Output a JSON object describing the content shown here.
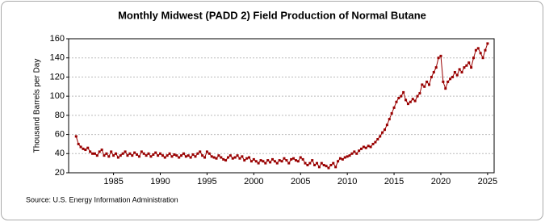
{
  "chart_data": {
    "type": "line",
    "title": "Monthly Midwest (PADD 2) Field Production of Normal Butane",
    "y_label": "Thousand Barrels per Day",
    "source": "Source: U.S. Energy Information Administration",
    "xlim": [
      1980.2,
      2025.7
    ],
    "xticks": [
      1985,
      1990,
      1995,
      2000,
      2005,
      2010,
      2015,
      2020,
      2025
    ],
    "ylim": [
      20,
      160
    ],
    "yticks": [
      20,
      40,
      60,
      80,
      100,
      120,
      140,
      160
    ],
    "grid": true,
    "x": [
      1981,
      1981.25,
      1981.5,
      1981.75,
      1982,
      1982.25,
      1982.5,
      1982.75,
      1983,
      1983.25,
      1983.5,
      1983.75,
      1984,
      1984.25,
      1984.5,
      1984.75,
      1985,
      1985.25,
      1985.5,
      1985.75,
      1986,
      1986.25,
      1986.5,
      1986.75,
      1987,
      1987.25,
      1987.5,
      1987.75,
      1988,
      1988.25,
      1988.5,
      1988.75,
      1989,
      1989.25,
      1989.5,
      1989.75,
      1990,
      1990.25,
      1990.5,
      1990.75,
      1991,
      1991.25,
      1991.5,
      1991.75,
      1992,
      1992.25,
      1992.5,
      1992.75,
      1993,
      1993.25,
      1993.5,
      1993.75,
      1994,
      1994.25,
      1994.5,
      1994.75,
      1995,
      1995.25,
      1995.5,
      1995.75,
      1996,
      1996.25,
      1996.5,
      1996.75,
      1997,
      1997.25,
      1997.5,
      1997.75,
      1998,
      1998.25,
      1998.5,
      1998.75,
      1999,
      1999.25,
      1999.5,
      1999.75,
      2000,
      2000.25,
      2000.5,
      2000.75,
      2001,
      2001.25,
      2001.5,
      2001.75,
      2002,
      2002.25,
      2002.5,
      2002.75,
      2003,
      2003.25,
      2003.5,
      2003.75,
      2004,
      2004.25,
      2004.5,
      2004.75,
      2005,
      2005.25,
      2005.5,
      2005.75,
      2006,
      2006.25,
      2006.5,
      2006.75,
      2007,
      2007.25,
      2007.5,
      2007.75,
      2008,
      2008.25,
      2008.5,
      2008.75,
      2009,
      2009.25,
      2009.5,
      2009.75,
      2010,
      2010.25,
      2010.5,
      2010.75,
      2011,
      2011.25,
      2011.5,
      2011.75,
      2012,
      2012.25,
      2012.5,
      2012.75,
      2013,
      2013.25,
      2013.5,
      2013.75,
      2014,
      2014.25,
      2014.5,
      2014.75,
      2015,
      2015.25,
      2015.5,
      2015.75,
      2016,
      2016.25,
      2016.5,
      2016.75,
      2017,
      2017.25,
      2017.5,
      2017.75,
      2018,
      2018.25,
      2018.5,
      2018.75,
      2019,
      2019.25,
      2019.5,
      2019.75,
      2020,
      2020.25,
      2020.5,
      2020.75,
      2021,
      2021.25,
      2021.5,
      2021.75,
      2022,
      2022.25,
      2022.5,
      2022.75,
      2023,
      2023.25,
      2023.5,
      2023.75,
      2024,
      2024.25,
      2024.5,
      2024.75,
      2025
    ],
    "series": [
      {
        "color": "#990000",
        "values": [
          58,
          50,
          47,
          45,
          44,
          46,
          42,
          40,
          40,
          38,
          42,
          44,
          38,
          40,
          37,
          42,
          38,
          40,
          36,
          38,
          40,
          42,
          38,
          40,
          38,
          41,
          39,
          37,
          42,
          40,
          38,
          40,
          37,
          39,
          41,
          38,
          40,
          38,
          36,
          38,
          40,
          37,
          39,
          38,
          36,
          38,
          40,
          37,
          38,
          36,
          39,
          37,
          40,
          42,
          38,
          36,
          42,
          40,
          37,
          36,
          35,
          38,
          36,
          34,
          33,
          36,
          38,
          35,
          36,
          38,
          35,
          37,
          33,
          35,
          36,
          32,
          34,
          32,
          30,
          33,
          32,
          30,
          33,
          31,
          34,
          32,
          30,
          33,
          32,
          35,
          33,
          30,
          34,
          35,
          33,
          32,
          36,
          34,
          30,
          28,
          30,
          33,
          28,
          30,
          26,
          30,
          28,
          27,
          25,
          28,
          30,
          26,
          32,
          35,
          34,
          36,
          37,
          38,
          40,
          42,
          40,
          43,
          45,
          47,
          46,
          48,
          47,
          50,
          52,
          55,
          58,
          62,
          65,
          70,
          76,
          82,
          88,
          94,
          98,
          100,
          104,
          96,
          92,
          94,
          97,
          95,
          100,
          103,
          112,
          110,
          115,
          112,
          120,
          125,
          130,
          140,
          142,
          115,
          108,
          115,
          118,
          120,
          125,
          122,
          128,
          125,
          130,
          132,
          135,
          130,
          140,
          148,
          150,
          145,
          140,
          148,
          155
        ]
      }
    ]
  }
}
